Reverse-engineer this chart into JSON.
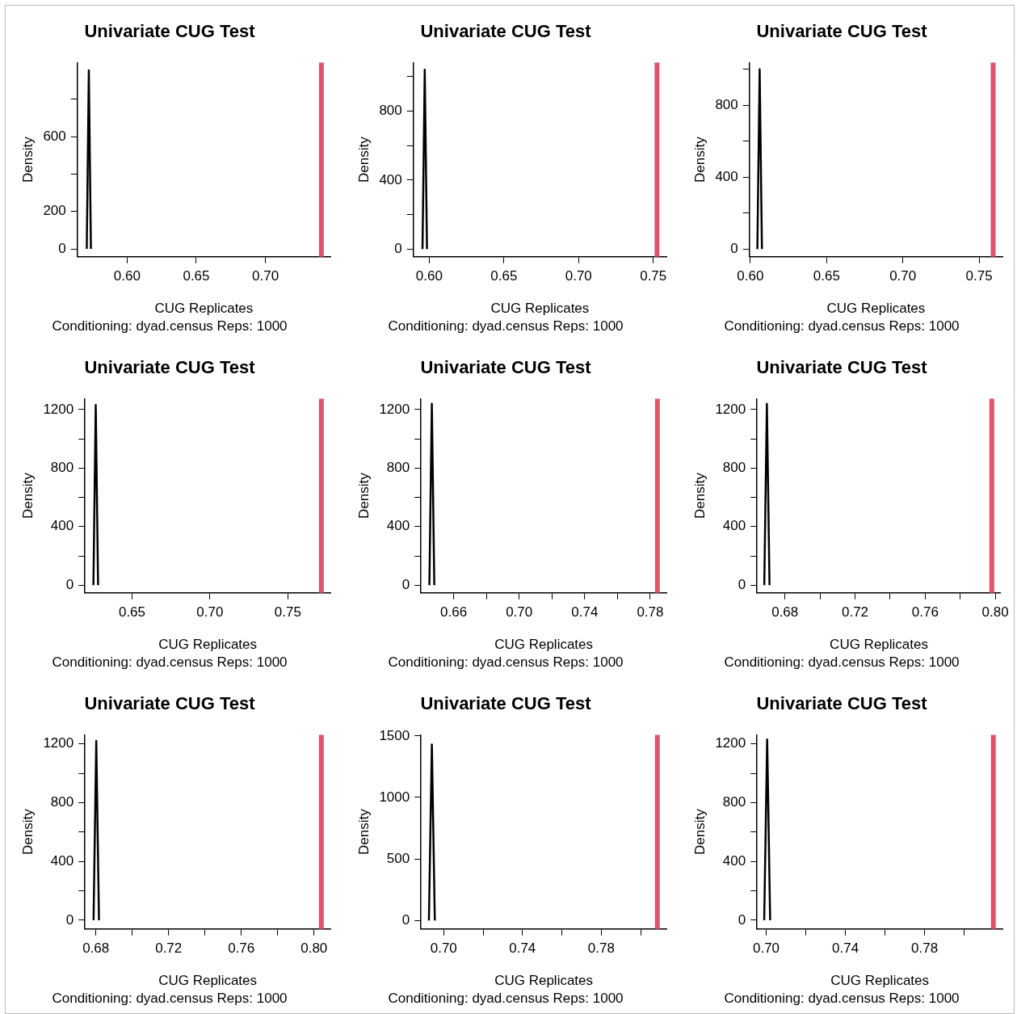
{
  "chart_data": [
    {
      "type": "line",
      "title": "Univariate CUG Test",
      "subtitle": "Conditioning: dyad.census Reps: 1000",
      "xlabel": "CUG Replicates",
      "ylabel": "Density",
      "series": [
        {
          "color": "#000000",
          "x": [
            0.5708,
            0.5723,
            0.5738
          ],
          "values": [
            0,
            956,
            0
          ]
        }
      ],
      "xlim": [
        0.564,
        0.747
      ],
      "xticks": [
        {
          "value": 0.6,
          "label": "0.60"
        },
        0.65,
        {
          "value": 0.7,
          "label": "0.70"
        }
      ],
      "ylim": [
        -42,
        997
      ],
      "yticks": [
        0,
        200,
        {
          "value": 400,
          "label": null
        },
        600,
        {
          "value": 800,
          "label": null
        }
      ],
      "ref_lines": [
        {
          "axis": "x",
          "value": 0.7405,
          "color": "#df536b"
        }
      ],
      "grid": false,
      "legend": false,
      "marker": "none",
      "line_style": "solid"
    },
    {
      "type": "line",
      "title": "Univariate CUG Test",
      "subtitle": "Conditioning: dyad.census Reps: 1000",
      "xlabel": "CUG Replicates",
      "ylabel": "Density",
      "series": [
        {
          "color": "#000000",
          "x": [
            0.5955,
            0.597,
            0.5985
          ],
          "values": [
            0,
            1040,
            0
          ]
        }
      ],
      "xlim": [
        0.5894,
        0.7588
      ],
      "xticks": [
        {
          "value": 0.6,
          "label": "0.60"
        },
        0.65,
        {
          "value": 0.7,
          "label": "0.70"
        },
        0.75
      ],
      "ylim": [
        -45,
        1082
      ],
      "yticks": [
        0,
        {
          "value": 200,
          "label": null
        },
        400,
        {
          "value": 600,
          "label": null
        },
        800,
        {
          "value": 1000,
          "label": null
        }
      ],
      "ref_lines": [
        {
          "axis": "x",
          "value": 0.7525,
          "color": "#df536b"
        }
      ],
      "grid": false,
      "legend": false,
      "marker": "none",
      "line_style": "solid"
    },
    {
      "type": "line",
      "title": "Univariate CUG Test",
      "subtitle": "Conditioning: dyad.census Reps: 1000",
      "xlabel": "CUG Replicates",
      "ylabel": "Density",
      "series": [
        {
          "color": "#000000",
          "x": [
            0.6046,
            0.6061,
            0.6076
          ],
          "values": [
            0,
            1000,
            0
          ]
        }
      ],
      "xlim": [
        0.5994,
        0.7653
      ],
      "xticks": [
        {
          "value": 0.6,
          "label": "0.60"
        },
        0.65,
        {
          "value": 0.7,
          "label": "0.70"
        },
        0.75
      ],
      "ylim": [
        -43,
        1038
      ],
      "yticks": [
        0,
        {
          "value": 200,
          "label": null
        },
        400,
        {
          "value": 600,
          "label": null
        },
        800,
        {
          "value": 1000,
          "label": null
        }
      ],
      "ref_lines": [
        {
          "axis": "x",
          "value": 0.7592,
          "color": "#df536b"
        }
      ],
      "grid": false,
      "legend": false,
      "marker": "none",
      "line_style": "solid"
    },
    {
      "type": "line",
      "title": "Univariate CUG Test",
      "subtitle": "Conditioning: dyad.census Reps: 1000",
      "xlabel": "CUG Replicates",
      "ylabel": "Density",
      "series": [
        {
          "color": "#000000",
          "x": [
            0.6252,
            0.6267,
            0.6282
          ],
          "values": [
            0,
            1232,
            0
          ]
        }
      ],
      "xlim": [
        0.6198,
        0.7773
      ],
      "xticks": [
        0.65,
        {
          "value": 0.7,
          "label": "0.70"
        },
        0.75
      ],
      "ylim": [
        -53,
        1275
      ],
      "yticks": [
        0,
        {
          "value": 200,
          "label": null
        },
        400,
        {
          "value": 600,
          "label": null
        },
        800,
        {
          "value": 1000,
          "label": null
        },
        1200
      ],
      "ref_lines": [
        {
          "axis": "x",
          "value": 0.7715,
          "color": "#df536b"
        }
      ],
      "grid": false,
      "legend": false,
      "marker": "none",
      "line_style": "solid"
    },
    {
      "type": "line",
      "title": "Univariate CUG Test",
      "subtitle": "Conditioning: dyad.census Reps: 1000",
      "xlabel": "CUG Replicates",
      "ylabel": "Density",
      "series": [
        {
          "color": "#000000",
          "x": [
            0.6452,
            0.6467,
            0.6482
          ],
          "values": [
            0,
            1240,
            0
          ]
        }
      ],
      "xlim": [
        0.6401,
        0.7899
      ],
      "xticks": [
        0.66,
        {
          "value": 0.68,
          "label": null
        },
        {
          "value": 0.7,
          "label": "0.70"
        },
        {
          "value": 0.72,
          "label": null
        },
        0.74,
        {
          "value": 0.76,
          "label": null
        },
        0.78
      ],
      "ylim": [
        -53,
        1275
      ],
      "yticks": [
        0,
        {
          "value": 200,
          "label": null
        },
        400,
        {
          "value": 600,
          "label": null
        },
        800,
        {
          "value": 1000,
          "label": null
        },
        1200
      ],
      "ref_lines": [
        {
          "axis": "x",
          "value": 0.7844,
          "color": "#df536b"
        }
      ],
      "grid": false,
      "legend": false,
      "marker": "none",
      "line_style": "solid"
    },
    {
      "type": "line",
      "title": "Univariate CUG Test",
      "subtitle": "Conditioning: dyad.census Reps: 1000",
      "xlabel": "CUG Replicates",
      "ylabel": "Density",
      "series": [
        {
          "color": "#000000",
          "x": [
            0.6682,
            0.6697,
            0.6712
          ],
          "values": [
            0,
            1240,
            0
          ]
        }
      ],
      "xlim": [
        0.6641,
        0.8031
      ],
      "xticks": [
        0.68,
        {
          "value": 0.7,
          "label": null
        },
        0.72,
        {
          "value": 0.74,
          "label": null
        },
        0.76,
        {
          "value": 0.78,
          "label": null
        },
        {
          "value": 0.8,
          "label": "0.80"
        }
      ],
      "ylim": [
        -53,
        1275
      ],
      "yticks": [
        0,
        {
          "value": 200,
          "label": null
        },
        400,
        {
          "value": 600,
          "label": null
        },
        800,
        {
          "value": 1000,
          "label": null
        },
        1200
      ],
      "ref_lines": [
        {
          "axis": "x",
          "value": 0.798,
          "color": "#df536b"
        }
      ],
      "grid": false,
      "legend": false,
      "marker": "none",
      "line_style": "solid"
    },
    {
      "type": "line",
      "title": "Univariate CUG Test",
      "subtitle": "Conditioning: dyad.census Reps: 1000",
      "xlabel": "CUG Replicates",
      "ylabel": "Density",
      "series": [
        {
          "color": "#000000",
          "x": [
            0.6787,
            0.6802,
            0.6817
          ],
          "values": [
            0,
            1220,
            0
          ]
        }
      ],
      "xlim": [
        0.674,
        0.809
      ],
      "xticks": [
        0.68,
        {
          "value": 0.7,
          "label": null
        },
        0.72,
        {
          "value": 0.74,
          "label": null
        },
        0.76,
        {
          "value": 0.78,
          "label": null
        },
        {
          "value": 0.8,
          "label": "0.80"
        }
      ],
      "ylim": [
        -60,
        1262
      ],
      "yticks": [
        0,
        {
          "value": 200,
          "label": null
        },
        400,
        {
          "value": 600,
          "label": null
        },
        800,
        {
          "value": 1000,
          "label": null
        },
        1200
      ],
      "ref_lines": [
        {
          "axis": "x",
          "value": 0.804,
          "color": "#df536b"
        }
      ],
      "grid": false,
      "legend": false,
      "marker": "none",
      "line_style": "solid"
    },
    {
      "type": "line",
      "title": "Univariate CUG Test",
      "subtitle": "Conditioning: dyad.census Reps: 1000",
      "xlabel": "CUG Replicates",
      "ylabel": "Density",
      "series": [
        {
          "color": "#000000",
          "x": [
            0.6925,
            0.694,
            0.6955
          ],
          "values": [
            0,
            1430,
            0
          ]
        }
      ],
      "xlim": [
        0.6885,
        0.8131
      ],
      "xticks": [
        {
          "value": 0.7,
          "label": "0.70"
        },
        {
          "value": 0.72,
          "label": null
        },
        0.74,
        {
          "value": 0.76,
          "label": null
        },
        0.78,
        {
          "value": 0.8,
          "label": null
        }
      ],
      "ylim": [
        -70,
        1510
      ],
      "yticks": [
        0,
        500,
        1000,
        1500
      ],
      "ref_lines": [
        {
          "axis": "x",
          "value": 0.8085,
          "color": "#df536b"
        }
      ],
      "grid": false,
      "legend": false,
      "marker": "none",
      "line_style": "solid"
    },
    {
      "type": "line",
      "title": "Univariate CUG Test",
      "subtitle": "Conditioning: dyad.census Reps: 1000",
      "xlabel": "CUG Replicates",
      "ylabel": "Density",
      "series": [
        {
          "color": "#000000",
          "x": [
            0.699,
            0.7005,
            0.702
          ],
          "values": [
            0,
            1230,
            0
          ]
        }
      ],
      "xlim": [
        0.6954,
        0.8193
      ],
      "xticks": [
        {
          "value": 0.7,
          "label": "0.70"
        },
        {
          "value": 0.72,
          "label": null
        },
        0.74,
        {
          "value": 0.76,
          "label": null
        },
        0.78,
        {
          "value": 0.8,
          "label": null
        }
      ],
      "ylim": [
        -60,
        1262
      ],
      "yticks": [
        0,
        {
          "value": 200,
          "label": null
        },
        400,
        {
          "value": 600,
          "label": null
        },
        800,
        {
          "value": 1000,
          "label": null
        },
        1200
      ],
      "ref_lines": [
        {
          "axis": "x",
          "value": 0.8147,
          "color": "#df536b"
        }
      ],
      "grid": false,
      "legend": false,
      "marker": "none",
      "line_style": "solid"
    }
  ]
}
